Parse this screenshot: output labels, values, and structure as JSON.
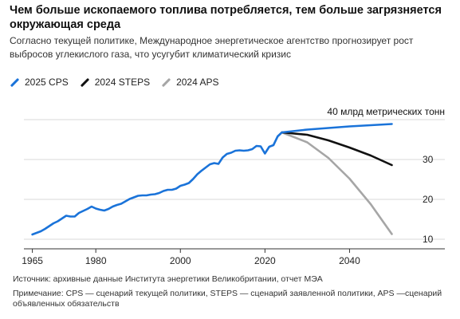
{
  "header": {
    "title": "Чем больше ископаемого топлива потребляется, тем больше загрязняется окружающая среда",
    "subtitle": "Согласно текущей политике, Международное энергетическое агентство прогнозирует рост выбросов углекислого газа, что усугубит климатический кризис"
  },
  "footer": {
    "source": "Источник: архивные данные Института энергетики Великобритании, отчет МЭА",
    "note": "Примечание: CPS — сценарий текущей политики, STEPS — сценарий заявленной политики, APS —сценарий объявленных обязательств"
  },
  "colors": {
    "cps": "#1a73d9",
    "steps": "#111111",
    "aps": "#a6a6a6",
    "grid": "#d9d9d9",
    "axis": "#333333"
  },
  "chart_data": {
    "type": "line",
    "ylabel": "40 млрд метрических тонн",
    "xlim": [
      1963,
      2055
    ],
    "ylim": [
      8,
      42
    ],
    "x_ticks": [
      1965,
      1980,
      2000,
      2020,
      2040
    ],
    "y_ticks": [
      10,
      20,
      30,
      40
    ],
    "y_tick_labels": [
      "10",
      "20",
      "30",
      "40"
    ],
    "grid": "horizontal",
    "legend_position": "top-left",
    "series": [
      {
        "name": "2025 CPS",
        "color_key": "cps",
        "x": [
          1965,
          1966,
          1967,
          1968,
          1969,
          1970,
          1971,
          1972,
          1973,
          1974,
          1975,
          1976,
          1977,
          1978,
          1979,
          1980,
          1981,
          1982,
          1983,
          1984,
          1985,
          1986,
          1987,
          1988,
          1989,
          1990,
          1991,
          1992,
          1993,
          1994,
          1995,
          1996,
          1997,
          1998,
          1999,
          2000,
          2001,
          2002,
          2003,
          2004,
          2005,
          2006,
          2007,
          2008,
          2009,
          2010,
          2011,
          2012,
          2013,
          2014,
          2015,
          2016,
          2017,
          2018,
          2019,
          2020,
          2021,
          2022,
          2023,
          2024,
          2030,
          2035,
          2040,
          2045,
          2050
        ],
        "y": [
          11.2,
          11.6,
          12.0,
          12.6,
          13.3,
          14.0,
          14.5,
          15.2,
          15.9,
          15.7,
          15.7,
          16.6,
          17.1,
          17.6,
          18.2,
          17.7,
          17.4,
          17.2,
          17.6,
          18.2,
          18.6,
          18.9,
          19.5,
          20.1,
          20.5,
          20.9,
          21.0,
          21.0,
          21.2,
          21.3,
          21.6,
          22.1,
          22.4,
          22.4,
          22.7,
          23.4,
          23.7,
          24.1,
          25.1,
          26.3,
          27.2,
          28.0,
          28.8,
          29.1,
          28.9,
          30.5,
          31.4,
          31.7,
          32.2,
          32.3,
          32.2,
          32.3,
          32.6,
          33.4,
          33.3,
          31.5,
          33.2,
          33.6,
          35.8,
          36.8,
          37.5,
          37.9,
          38.3,
          38.6,
          38.9
        ]
      },
      {
        "name": "2024 STEPS",
        "color_key": "steps",
        "x": [
          2024,
          2030,
          2035,
          2040,
          2045,
          2050
        ],
        "y": [
          36.8,
          36.2,
          34.8,
          33.0,
          31.0,
          28.6
        ]
      },
      {
        "name": "2024 APS",
        "color_key": "aps",
        "x": [
          2024,
          2030,
          2035,
          2040,
          2045,
          2050
        ],
        "y": [
          36.8,
          34.3,
          30.4,
          25.2,
          18.8,
          11.3
        ]
      }
    ]
  }
}
